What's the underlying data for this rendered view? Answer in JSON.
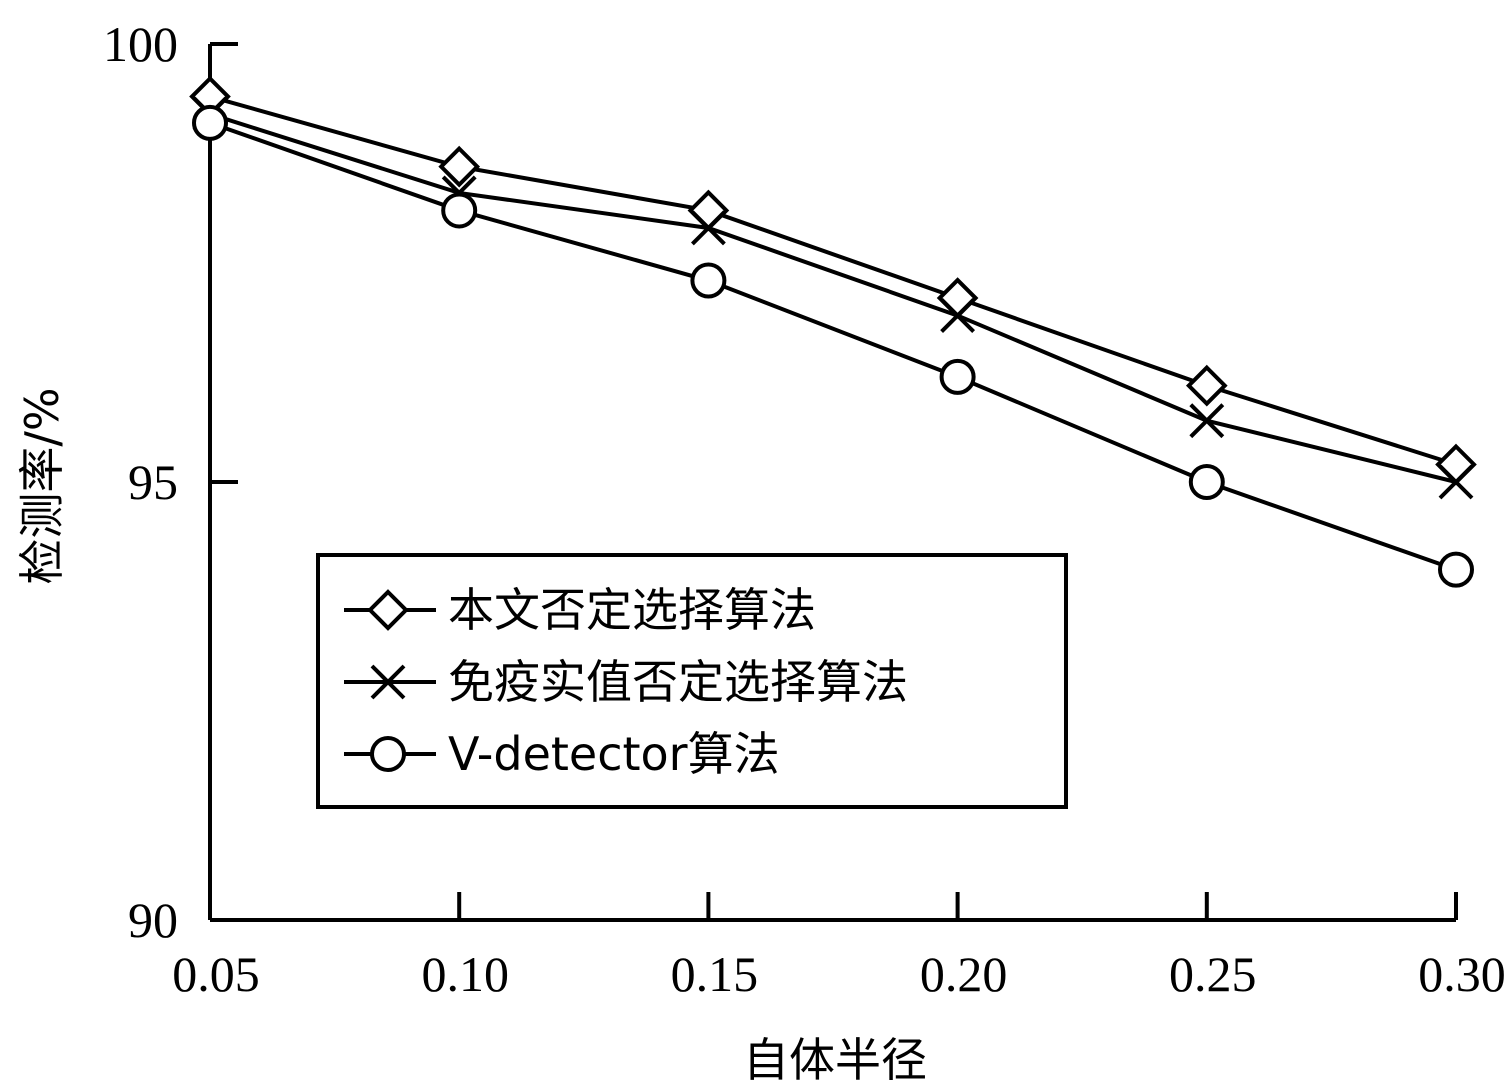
{
  "chart_data": {
    "type": "line",
    "xlabel": "自体半径",
    "ylabel": "检测率/%",
    "x": [
      0.05,
      0.1,
      0.15,
      0.2,
      0.25,
      0.3
    ],
    "x_tick_labels": [
      "0.05",
      "0.10",
      "0.15",
      "0.20",
      "0.25",
      "0.30"
    ],
    "y_ticks": [
      90,
      95,
      100
    ],
    "y_tick_labels": [
      "90",
      "95",
      "100"
    ],
    "xlim": [
      0.05,
      0.3
    ],
    "ylim": [
      90,
      100
    ],
    "grid": false,
    "legend_position": "lower-left (inside plot, boxed)",
    "series": [
      {
        "name": "本文否定选择算法",
        "marker": "diamond",
        "values": [
          99.4,
          98.6,
          98.1,
          97.1,
          96.1,
          95.2
        ]
      },
      {
        "name": "免疫实值否定选择算法",
        "marker": "x",
        "values": [
          99.2,
          98.3,
          97.9,
          96.9,
          95.7,
          95.0
        ]
      },
      {
        "name": "V-detector算法",
        "marker": "circle",
        "values": [
          99.1,
          98.1,
          97.3,
          96.2,
          95.0,
          94.0
        ]
      }
    ]
  }
}
